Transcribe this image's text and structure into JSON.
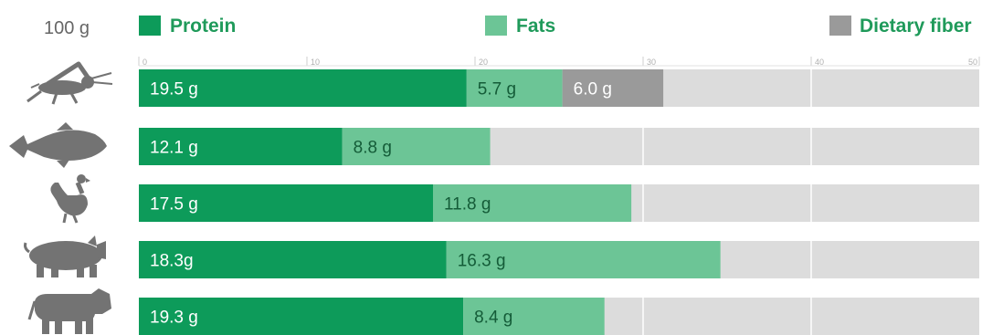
{
  "chart_data": {
    "type": "bar",
    "orientation": "horizontal",
    "stacked": true,
    "unit_label": "100 g",
    "xlim": [
      0,
      50
    ],
    "x_ticks": [
      0,
      10,
      20,
      30,
      40,
      50
    ],
    "grid": true,
    "legend_position": "top",
    "categories": [
      "cricket-icon",
      "fish-icon",
      "chicken-icon",
      "pig-icon",
      "cow-icon"
    ],
    "series": [
      {
        "name": "Protein",
        "color": "#0d9b5a",
        "values": [
          19.5,
          12.1,
          17.5,
          18.3,
          19.3
        ],
        "labels": [
          "19.5 g",
          "12.1 g",
          "17.5 g",
          "18.3g",
          "19.3 g"
        ]
      },
      {
        "name": "Fats",
        "color": "#6cc596",
        "values": [
          5.7,
          8.8,
          11.8,
          16.3,
          8.4
        ],
        "labels": [
          "5.7 g",
          "8.8 g",
          "11.8 g",
          "16.3 g",
          "8.4 g"
        ]
      },
      {
        "name": "Dietary fiber",
        "color": "#9a9a9a",
        "values": [
          6.0,
          null,
          null,
          null,
          null
        ],
        "labels": [
          "6.0 g",
          "",
          "",
          "",
          ""
        ]
      }
    ]
  }
}
